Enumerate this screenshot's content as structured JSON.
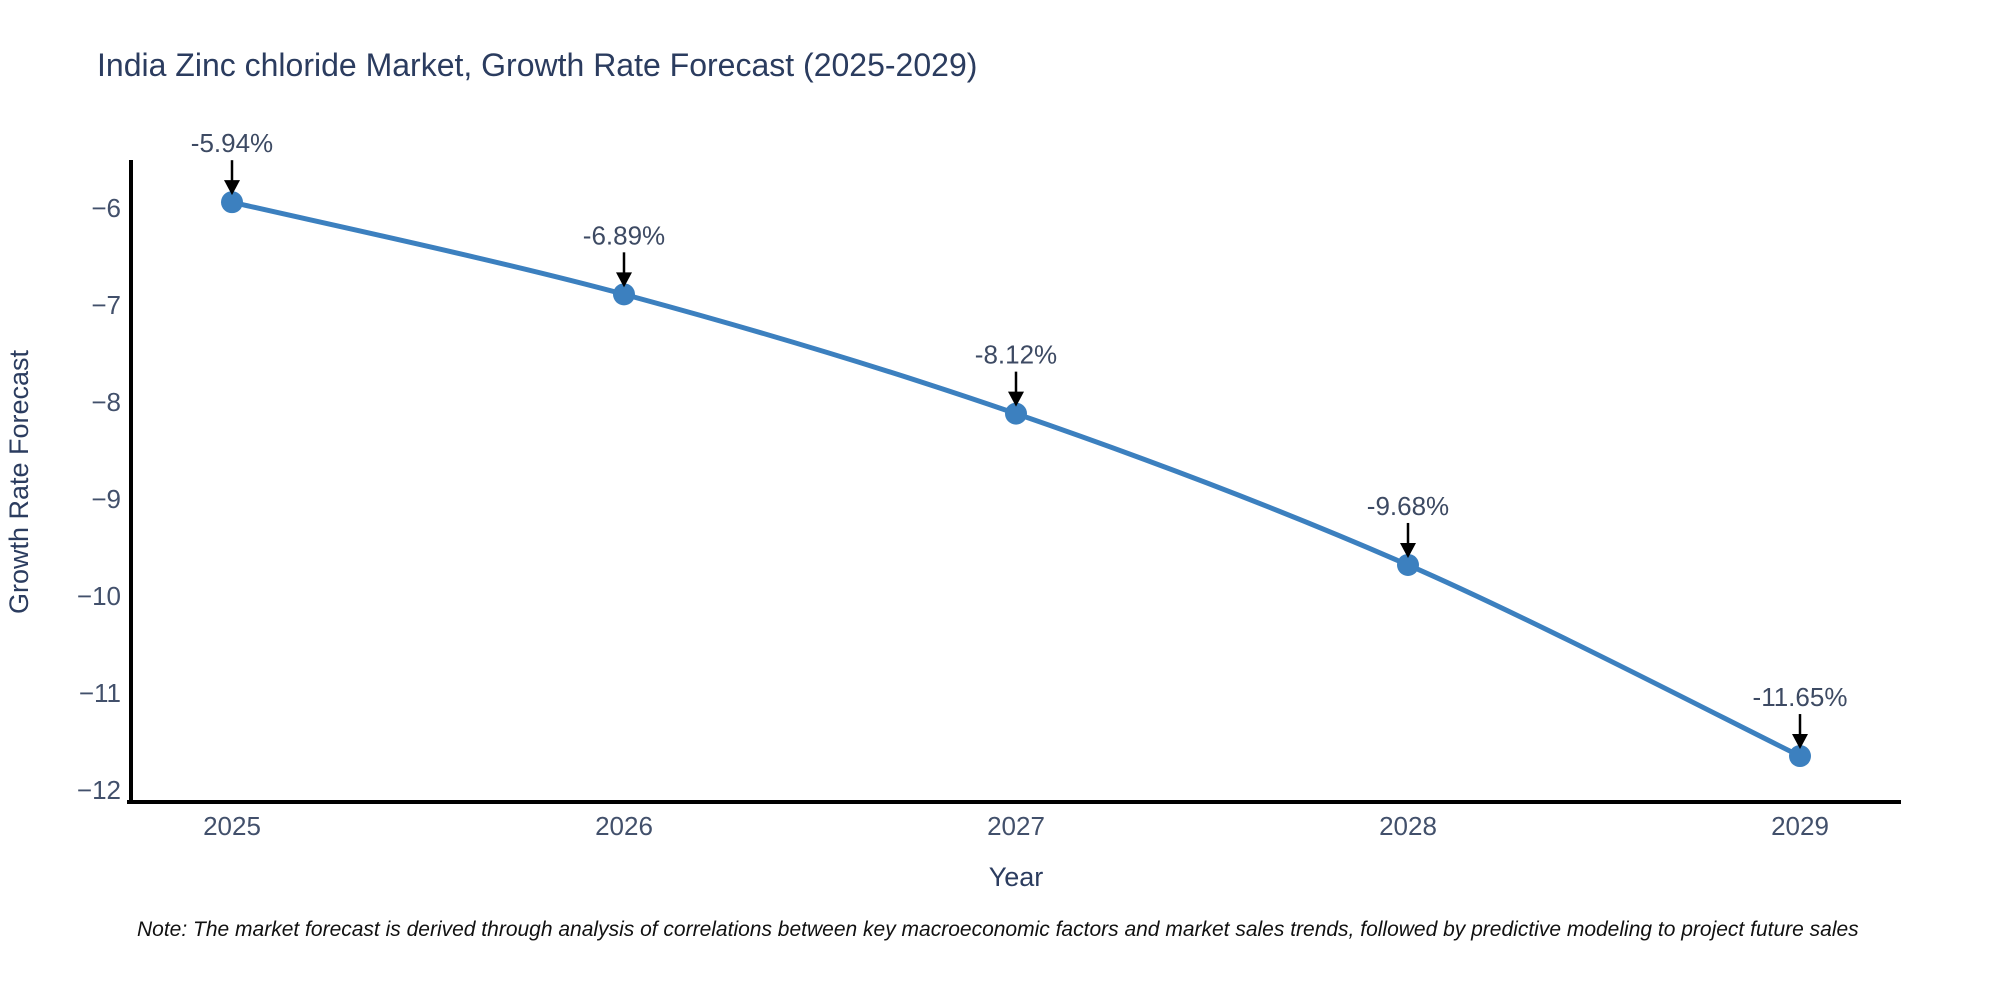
{
  "footnote": "Note: The market forecast is derived through analysis of correlations between key macroeconomic factors and market sales trends, followed by predictive modeling to project future sales",
  "chart_data": {
    "type": "line",
    "title": "India Zinc chloride Market, Growth Rate Forecast (2025-2029)",
    "xlabel": "Year",
    "ylabel": "Growth Rate Forecast",
    "categories": [
      "2025",
      "2026",
      "2027",
      "2028",
      "2029"
    ],
    "series": [
      {
        "name": "Growth Rate Forecast",
        "values": [
          -5.94,
          -6.89,
          -8.12,
          -9.68,
          -11.65
        ]
      }
    ],
    "point_labels": [
      "-5.94%",
      "-6.89%",
      "-8.12%",
      "-9.68%",
      "-11.65%"
    ],
    "yticks": [
      -6,
      -7,
      -8,
      -9,
      -10,
      -11,
      -12
    ],
    "ylim": [
      -12.1,
      -5.5
    ],
    "grid": false,
    "legend": "none",
    "line_shape": "spline",
    "line_color": "#3c80bf",
    "marker_color": "#3c80bf",
    "arrow_color": "#000000",
    "axis_color": "#000000",
    "title_color": "#2b3c5f",
    "tick_color": "#42506b"
  }
}
